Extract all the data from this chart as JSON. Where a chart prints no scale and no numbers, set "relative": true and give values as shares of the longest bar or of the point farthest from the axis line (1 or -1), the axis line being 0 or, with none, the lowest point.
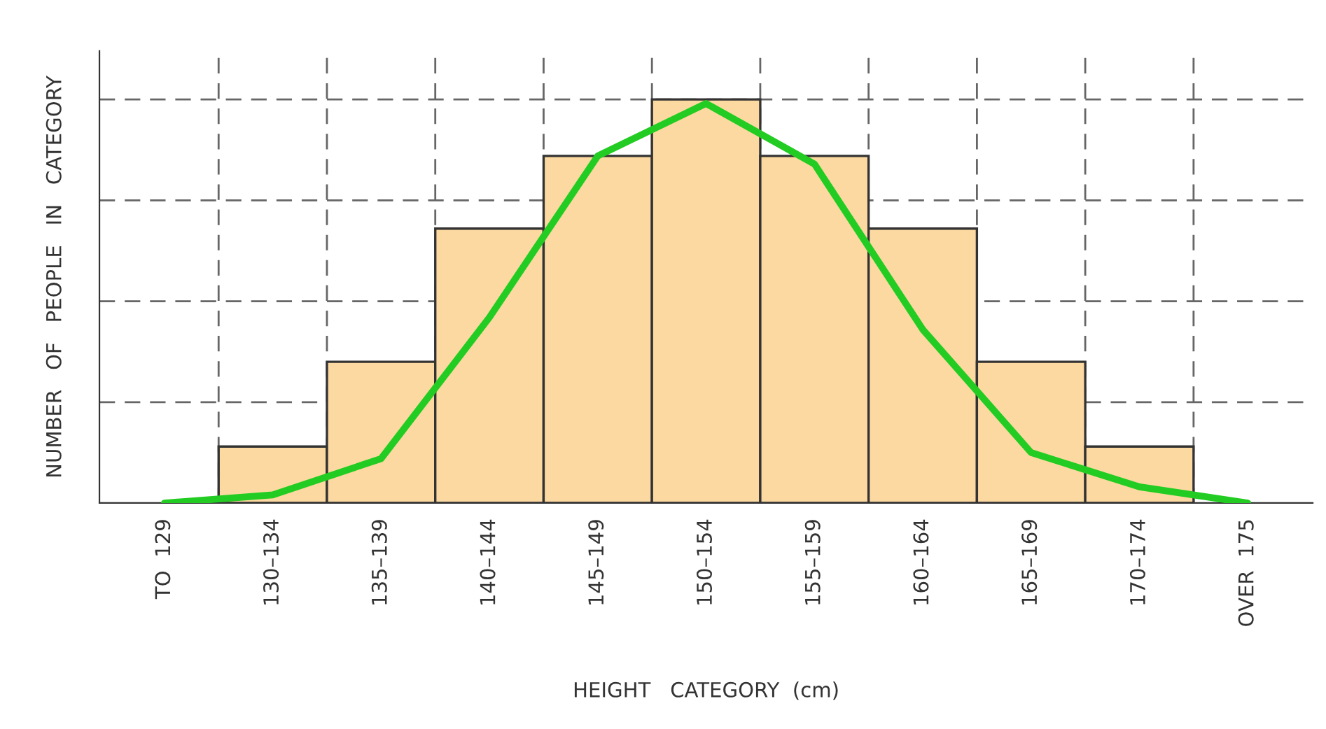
{
  "chart_data": {
    "type": "bar",
    "relative": true,
    "xlabel": "HEIGHT   CATEGORY  (cm)",
    "ylabel": "NUMBER   OF   PEOPLE   IN   CATEGORY",
    "categories": [
      "TO  129",
      "130–134",
      "135–139",
      "140–144",
      "145–149",
      "150–154",
      "155–159",
      "160–164",
      "165–169",
      "170–174",
      "OVER  175"
    ],
    "series": [
      {
        "color": "#fcd9a0",
        "values": [
          0,
          0.14,
          0.35,
          0.68,
          0.86,
          1,
          0.86,
          0.68,
          0.35,
          0.14,
          0
        ]
      },
      {
        "type": "line",
        "color": "#22cc22",
        "values": [
          0,
          0.02,
          0.11,
          0.46,
          0.86,
          0.99,
          0.84,
          0.43,
          0.125,
          0.04,
          0
        ]
      }
    ],
    "grid": true,
    "legend": false
  }
}
